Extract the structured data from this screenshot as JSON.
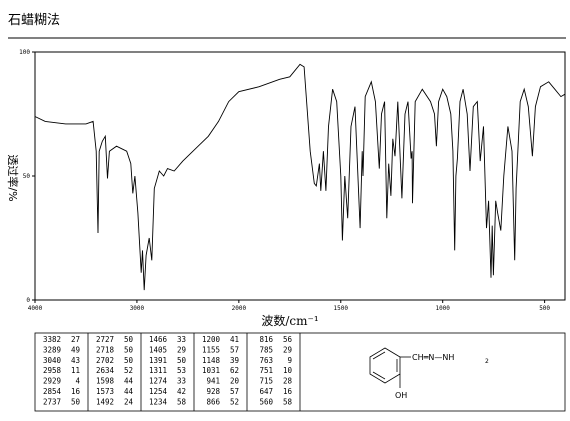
{
  "chart_data": {
    "type": "line",
    "title": "石蜡糊法",
    "xlabel": "波数/cm⁻¹",
    "ylabel": "透过率/%",
    "x_scale_break": 2000,
    "xlim": [
      4000,
      400
    ],
    "ylim": [
      0,
      100
    ],
    "xticks": [
      4000,
      3000,
      2000,
      1500,
      1000,
      500
    ],
    "yticks": [
      0,
      50,
      100
    ],
    "x": [
      4000,
      3900,
      3700,
      3500,
      3430,
      3400,
      3382,
      3370,
      3340,
      3310,
      3289,
      3270,
      3200,
      3150,
      3100,
      3060,
      3040,
      3020,
      2990,
      2958,
      2945,
      2929,
      2910,
      2880,
      2854,
      2830,
      2780,
      2737,
      2700,
      2634,
      2550,
      2400,
      2300,
      2200,
      2100,
      2000,
      1900,
      1800,
      1750,
      1700,
      1680,
      1650,
      1630,
      1620,
      1605,
      1598,
      1585,
      1573,
      1560,
      1540,
      1520,
      1500,
      1492,
      1480,
      1466,
      1450,
      1430,
      1405,
      1395,
      1391,
      1380,
      1350,
      1330,
      1311,
      1300,
      1285,
      1274,
      1265,
      1254,
      1245,
      1234,
      1220,
      1200,
      1185,
      1170,
      1155,
      1150,
      1148,
      1135,
      1100,
      1060,
      1040,
      1031,
      1020,
      1000,
      980,
      960,
      950,
      941,
      935,
      928,
      915,
      900,
      880,
      866,
      850,
      830,
      816,
      800,
      785,
      775,
      763,
      757,
      751,
      740,
      730,
      715,
      700,
      680,
      660,
      647,
      640,
      620,
      600,
      580,
      560,
      545,
      520,
      480,
      450,
      420,
      400
    ],
    "series": [
      {
        "color": "#000000",
        "values": [
          74,
          72,
          71,
          71,
          72,
          60,
          27,
          60,
          64,
          66,
          49,
          60,
          62,
          61,
          60,
          55,
          43,
          50,
          35,
          11,
          20,
          4,
          18,
          25,
          16,
          45,
          52,
          50,
          53,
          52,
          56,
          62,
          66,
          72,
          80,
          84,
          86,
          89,
          90,
          95,
          94,
          60,
          47,
          46,
          55,
          44,
          60,
          44,
          70,
          85,
          80,
          50,
          24,
          50,
          33,
          70,
          78,
          29,
          60,
          50,
          82,
          88,
          80,
          53,
          75,
          80,
          33,
          55,
          42,
          65,
          58,
          80,
          41,
          75,
          80,
          57,
          60,
          39,
          80,
          85,
          80,
          75,
          62,
          80,
          85,
          82,
          75,
          60,
          20,
          50,
          57,
          80,
          85,
          75,
          52,
          78,
          80,
          56,
          70,
          29,
          40,
          9,
          30,
          10,
          40,
          35,
          28,
          50,
          70,
          60,
          16,
          45,
          80,
          85,
          78,
          58,
          78,
          86,
          88,
          85,
          82,
          83
        ]
      }
    ],
    "peaks": [
      [
        3382,
        27
      ],
      [
        3289,
        49
      ],
      [
        3040,
        43
      ],
      [
        2958,
        11
      ],
      [
        2929,
        4
      ],
      [
        2854,
        16
      ],
      [
        2737,
        50
      ],
      [
        2727,
        50
      ],
      [
        2718,
        50
      ],
      [
        2702,
        50
      ],
      [
        2634,
        52
      ],
      [
        1598,
        44
      ],
      [
        1573,
        44
      ],
      [
        1492,
        24
      ],
      [
        1466,
        33
      ],
      [
        1405,
        29
      ],
      [
        1391,
        50
      ],
      [
        1311,
        53
      ],
      [
        1274,
        33
      ],
      [
        1254,
        42
      ],
      [
        1234,
        58
      ],
      [
        1200,
        41
      ],
      [
        1155,
        57
      ],
      [
        1148,
        39
      ],
      [
        1031,
        62
      ],
      [
        941,
        20
      ],
      [
        928,
        57
      ],
      [
        866,
        52
      ],
      [
        816,
        56
      ],
      [
        785,
        29
      ],
      [
        763,
        9
      ],
      [
        751,
        10
      ],
      [
        715,
        28
      ],
      [
        647,
        16
      ],
      [
        560,
        58
      ]
    ],
    "structure": {
      "chain": "CH═N—NH",
      "subscript": "2",
      "substituent": "OH"
    }
  }
}
